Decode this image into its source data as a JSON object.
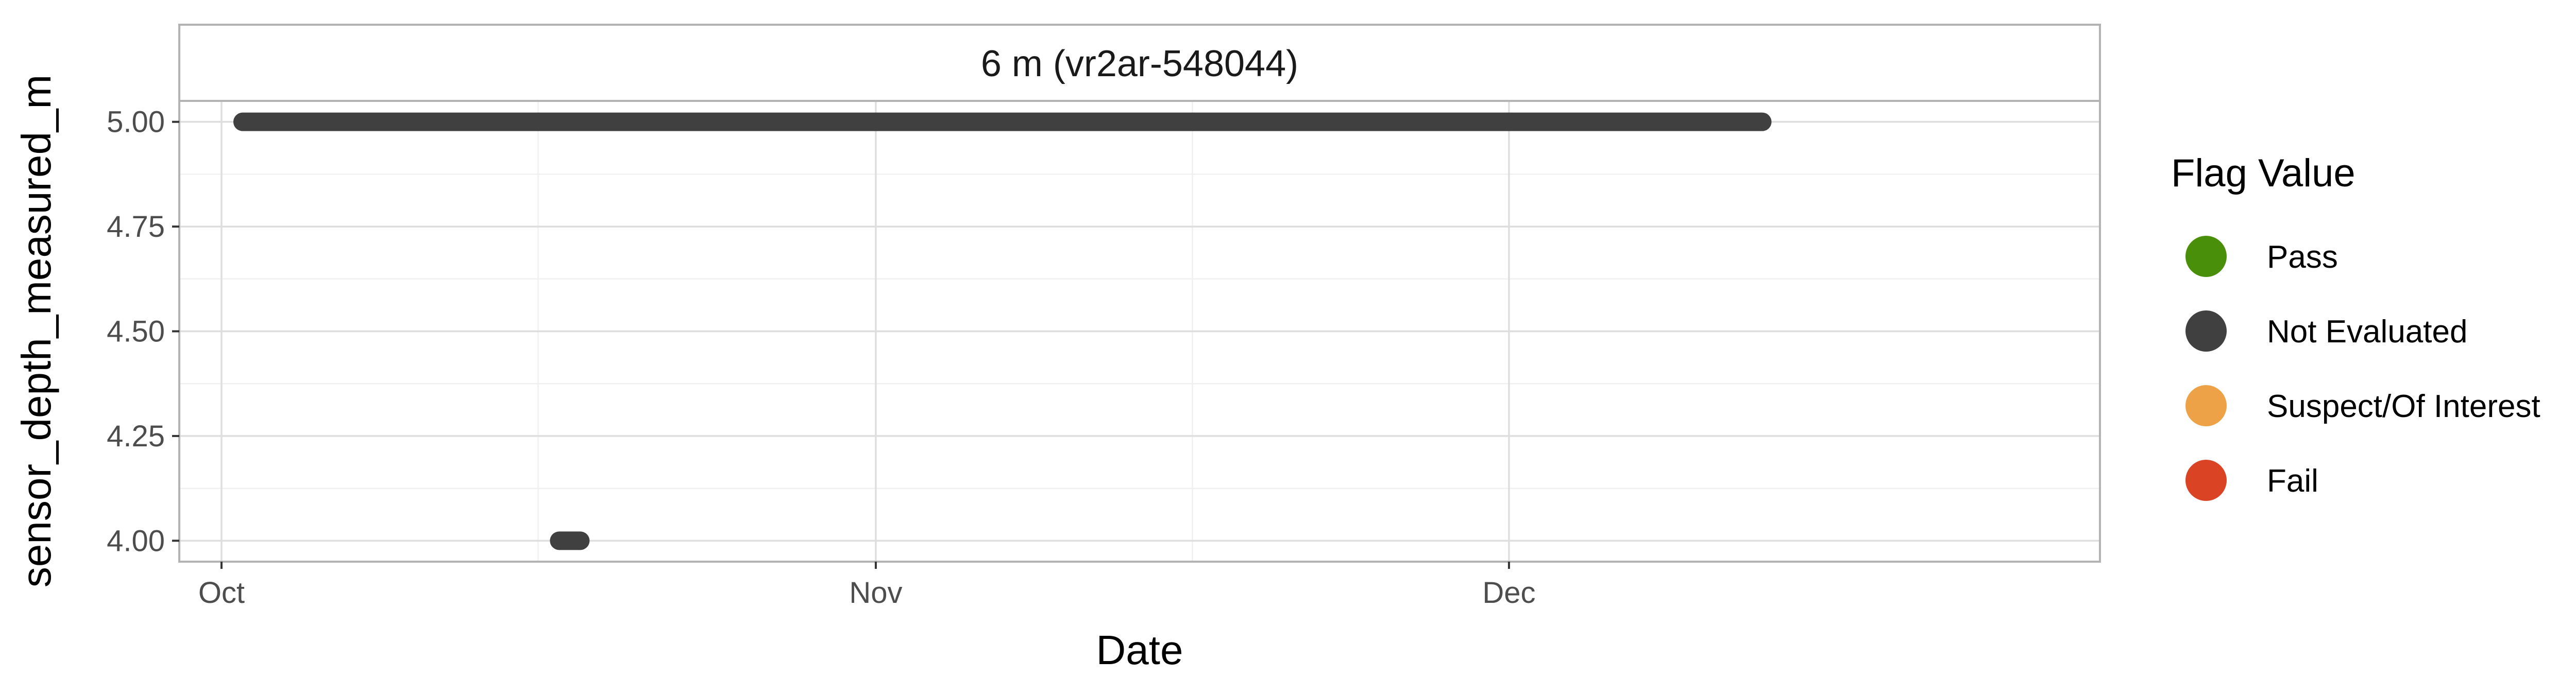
{
  "chart_data": {
    "type": "scatter",
    "facet_label": "6 m (vr2ar-548044)",
    "xlabel": "Date",
    "ylabel": "sensor_depth_measured_m",
    "xlim": [
      "2023-09-29",
      "2023-12-29"
    ],
    "ylim": [
      3.95,
      5.05
    ],
    "x_ticks": [
      {
        "date": "2023-10-01",
        "label": "Oct"
      },
      {
        "date": "2023-11-01",
        "label": "Nov"
      },
      {
        "date": "2023-12-01",
        "label": "Dec"
      }
    ],
    "x_minor_ticks": [
      "2023-10-16",
      "2023-11-16"
    ],
    "y_ticks": [
      {
        "value": 4.0,
        "label": "4.00"
      },
      {
        "value": 4.25,
        "label": "4.25"
      },
      {
        "value": 4.5,
        "label": "4.50"
      },
      {
        "value": 4.75,
        "label": "4.75"
      },
      {
        "value": 5.0,
        "label": "5.00"
      }
    ],
    "y_minor_ticks": [
      4.125,
      4.375,
      4.625,
      4.875
    ],
    "grid": true,
    "legend": {
      "title": "Flag Value",
      "position": "right",
      "entries": [
        {
          "label": "Pass",
          "color": "#4A8F0A"
        },
        {
          "label": "Not Evaluated",
          "color": "#404040"
        },
        {
          "label": "Suspect/Of Interest",
          "color": "#EDA247"
        },
        {
          "label": "Fail",
          "color": "#DB4325"
        }
      ]
    },
    "series": [
      {
        "name": "Not Evaluated",
        "color": "#404040",
        "segments": [
          {
            "x_start": "2023-10-02",
            "x_end": "2023-12-13",
            "y": 5.0
          },
          {
            "x_start": "2023-10-17",
            "x_end": "2023-10-18",
            "y": 4.0
          }
        ]
      }
    ]
  }
}
